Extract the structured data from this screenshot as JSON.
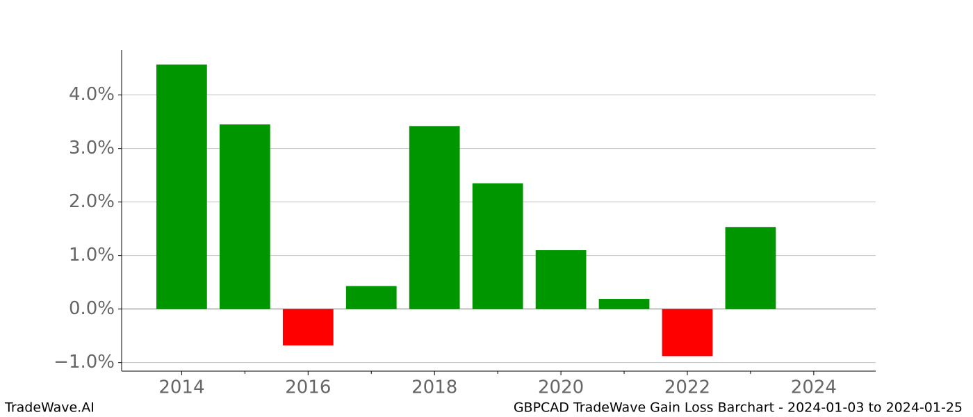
{
  "chart_data": {
    "type": "bar",
    "title": "GBPCAD TradeWave Gain Loss Barchart - 2024-01-03 to 2024-01-25",
    "watermark": "TradeWave.AI",
    "x": [
      2014,
      2015,
      2016,
      2017,
      2018,
      2019,
      2020,
      2021,
      2022,
      2023
    ],
    "values": [
      4.57,
      3.45,
      -0.68,
      0.43,
      3.42,
      2.35,
      1.1,
      0.19,
      -0.88,
      1.53
    ],
    "color_positive": "#009600",
    "color_negative": "#ff0000",
    "xlim": [
      2013.05,
      2024.98
    ],
    "xticks": [
      2014,
      2016,
      2018,
      2020,
      2022,
      2024
    ],
    "xminorticks": [
      2015,
      2017,
      2019,
      2021,
      2023
    ],
    "ylim": [
      -1.16,
      4.84
    ],
    "yticks": [
      {
        "value": -1,
        "label": "−1.0%"
      },
      {
        "value": 0,
        "label": "0.0%"
      },
      {
        "value": 1,
        "label": "1.0%"
      },
      {
        "value": 2,
        "label": "2.0%"
      },
      {
        "value": 3,
        "label": "3.0%"
      },
      {
        "value": 4,
        "label": "4.0%"
      }
    ],
    "grid": true
  }
}
